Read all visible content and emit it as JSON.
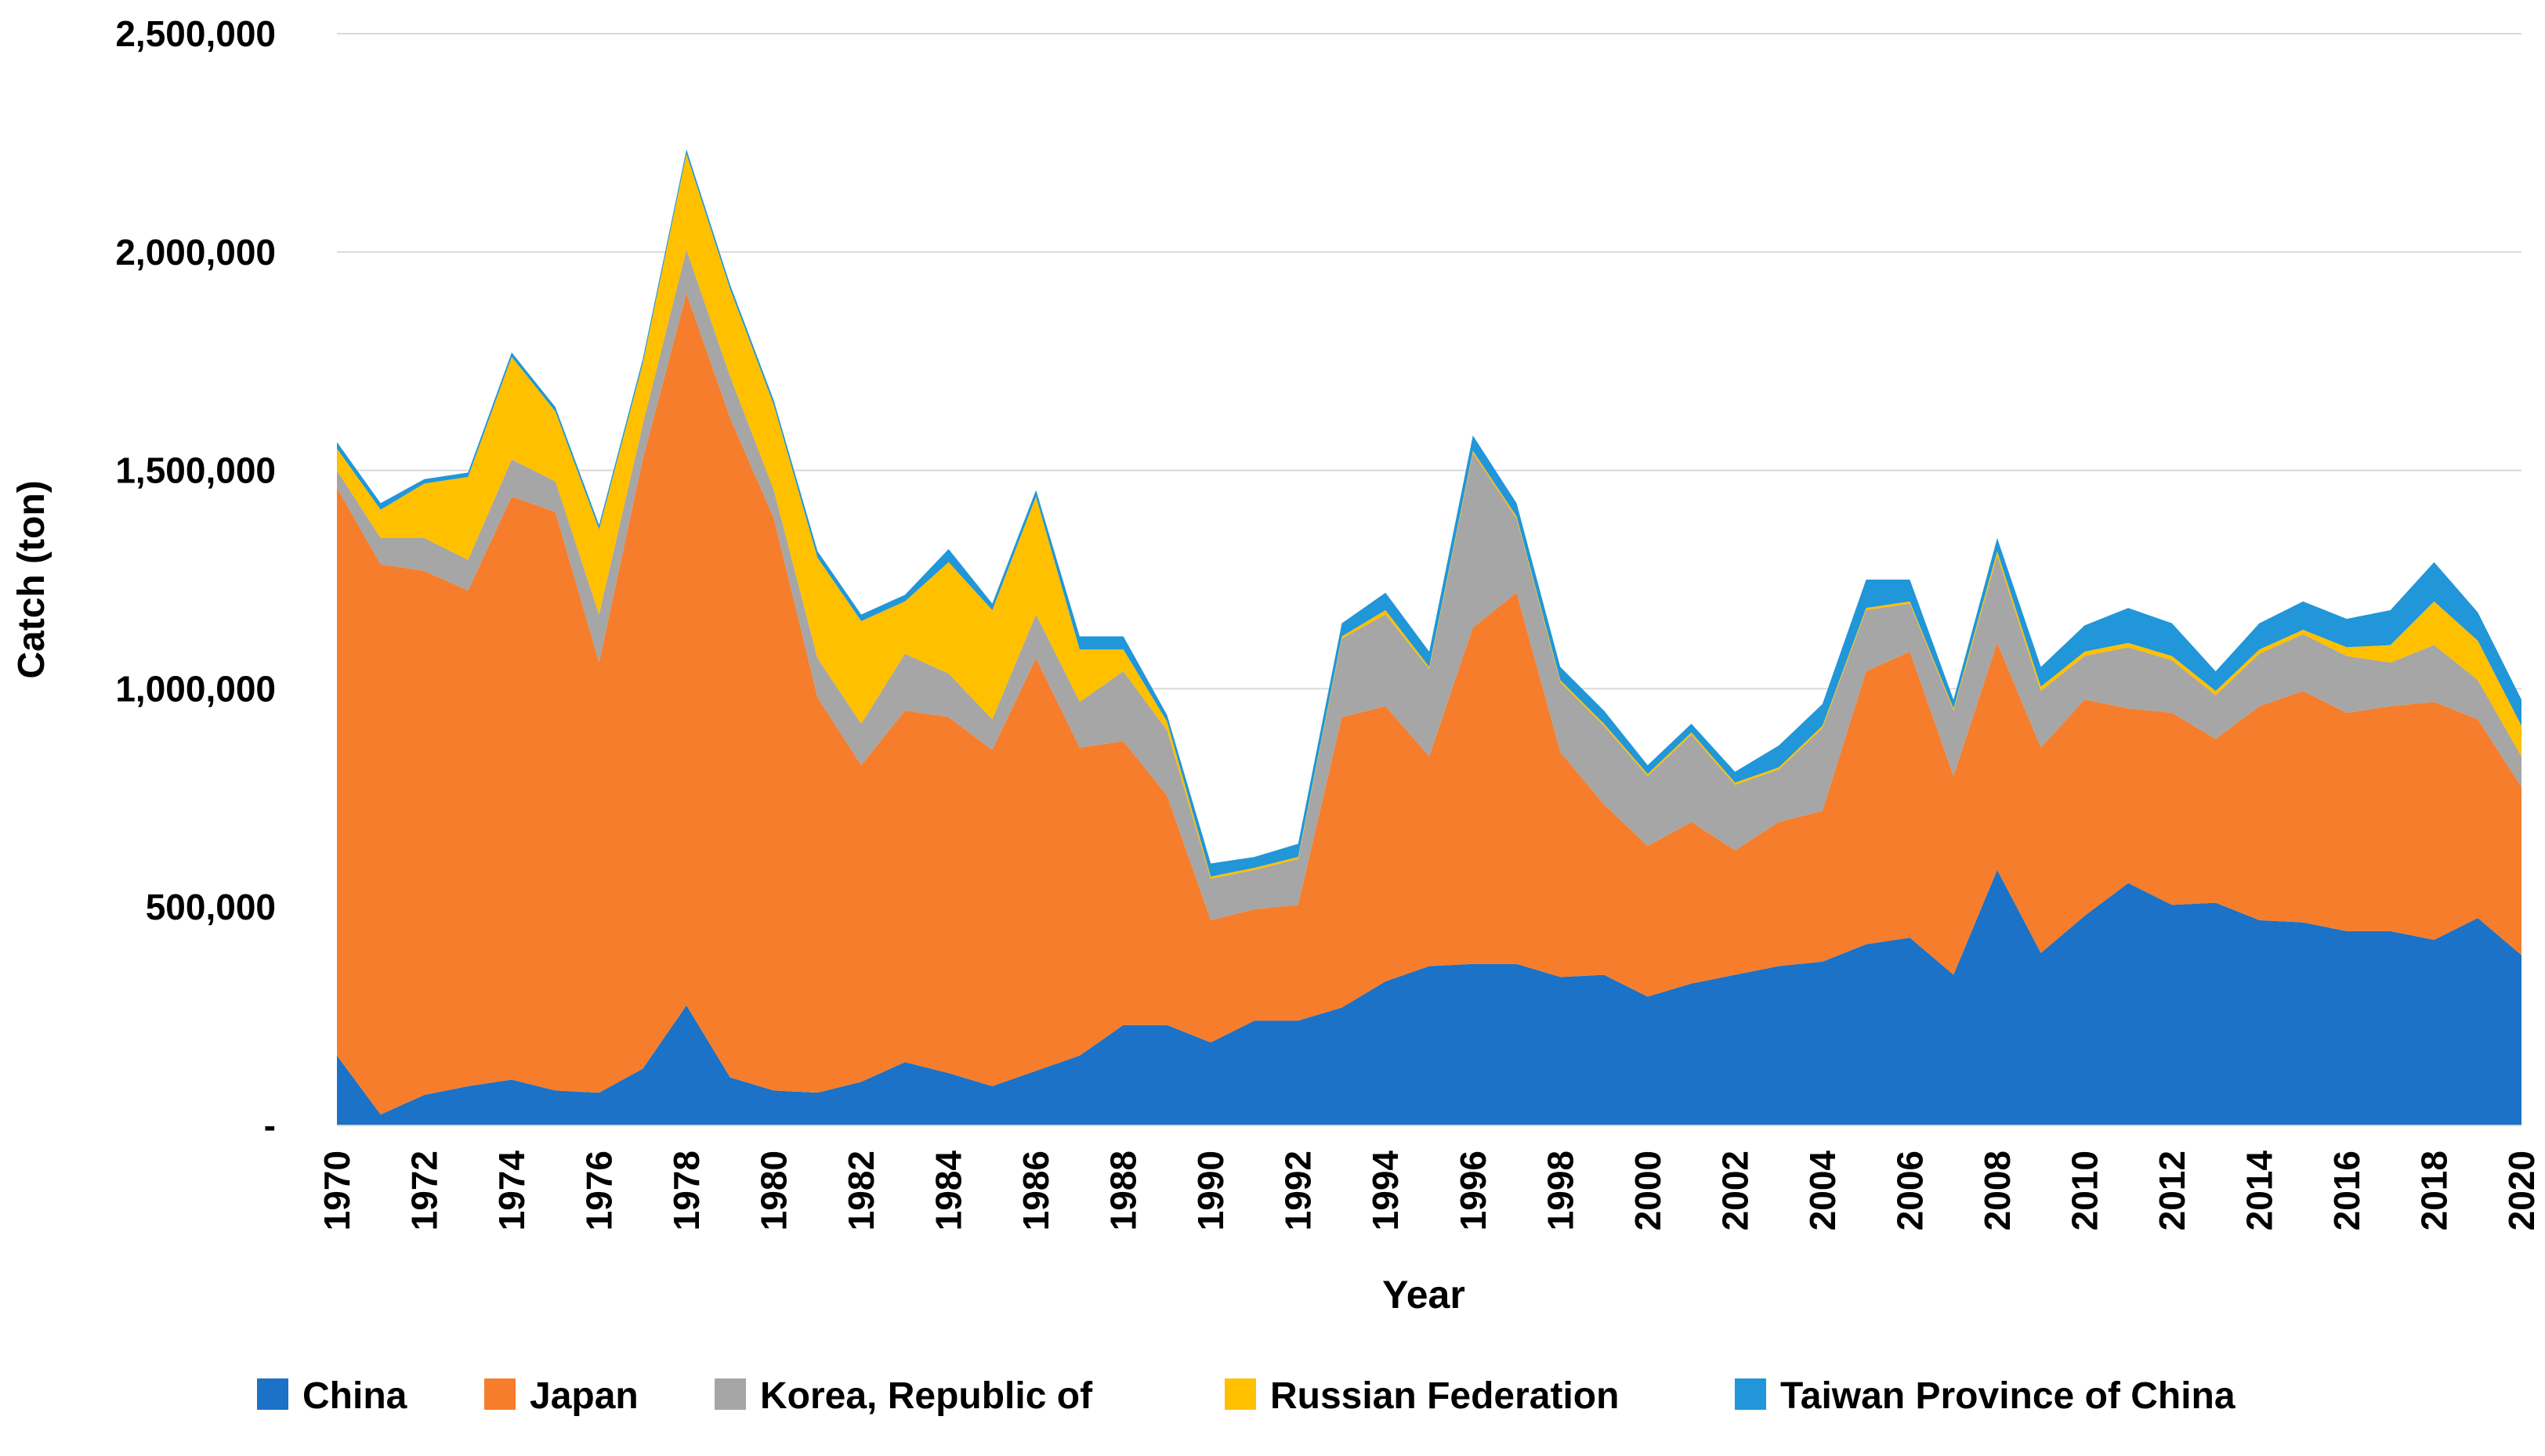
{
  "chart_data": {
    "type": "area",
    "stacked": true,
    "title": "",
    "xlabel": "Year",
    "ylabel": "Catch (ton)",
    "ylim": [
      0,
      2500000
    ],
    "yticks": [
      0,
      500000,
      1000000,
      1500000,
      2000000,
      2500000
    ],
    "ytick_labels": [
      "-",
      "500,000",
      "1,000,000",
      "1,500,000",
      "2,000,000",
      "2,500,000"
    ],
    "xticks": [
      1970,
      1972,
      1974,
      1976,
      1978,
      1980,
      1982,
      1984,
      1986,
      1988,
      1990,
      1992,
      1994,
      1996,
      1998,
      2000,
      2002,
      2004,
      2006,
      2008,
      2010,
      2012,
      2014,
      2016,
      2018,
      2020
    ],
    "xtick_labels": [
      "1970",
      "1972",
      "1974",
      "1976",
      "1978",
      "1980",
      "1982",
      "1984",
      "1986",
      "1988",
      "1990",
      "1992",
      "1994",
      "1996",
      "1998",
      "2000",
      "2002",
      "2004",
      "2006",
      "2008",
      "2010",
      "2012",
      "2014",
      "2016",
      "2018",
      "2020"
    ],
    "grid": "horizontal",
    "legend_position": "bottom",
    "x": [
      1970,
      1971,
      1972,
      1973,
      1974,
      1975,
      1976,
      1977,
      1978,
      1979,
      1980,
      1981,
      1982,
      1983,
      1984,
      1985,
      1986,
      1987,
      1988,
      1989,
      1990,
      1991,
      1992,
      1993,
      1994,
      1995,
      1996,
      1997,
      1998,
      1999,
      2000,
      2001,
      2002,
      2003,
      2004,
      2005,
      2006,
      2007,
      2008,
      2009,
      2010,
      2011,
      2012,
      2013,
      2014,
      2015,
      2016,
      2017,
      2018,
      2019,
      2020
    ],
    "series": [
      {
        "name": "China",
        "color": "#1b72c6",
        "values": [
          160000,
          25000,
          70000,
          90000,
          105000,
          80000,
          75000,
          130000,
          275000,
          110000,
          80000,
          75000,
          100000,
          145000,
          120000,
          90000,
          125000,
          160000,
          230000,
          230000,
          190000,
          240000,
          240000,
          270000,
          330000,
          365000,
          370000,
          370000,
          340000,
          345000,
          295000,
          325000,
          345000,
          365000,
          375000,
          415000,
          430000,
          345000,
          585000,
          395000,
          480000,
          555000,
          505000,
          510000,
          470000,
          465000,
          445000,
          445000,
          425000,
          475000,
          390000
        ]
      },
      {
        "name": "Japan",
        "color": "#f67d2b",
        "values": [
          1300000,
          1260000,
          1200000,
          1135000,
          1335000,
          1325000,
          985000,
          1395000,
          1630000,
          1510000,
          1310000,
          905000,
          725000,
          805000,
          815000,
          770000,
          945000,
          705000,
          650000,
          525000,
          280000,
          255000,
          265000,
          665000,
          630000,
          480000,
          770000,
          850000,
          515000,
          390000,
          345000,
          370000,
          285000,
          330000,
          345000,
          625000,
          655000,
          455000,
          520000,
          470000,
          495000,
          400000,
          440000,
          375000,
          490000,
          530000,
          500000,
          515000,
          545000,
          455000,
          385000
        ]
      },
      {
        "name": "Korea, Republic of",
        "color": "#a6a6a6",
        "values": [
          40000,
          60000,
          75000,
          70000,
          85000,
          70000,
          110000,
          80000,
          100000,
          95000,
          65000,
          90000,
          95000,
          130000,
          100000,
          70000,
          100000,
          105000,
          160000,
          150000,
          95000,
          90000,
          105000,
          180000,
          210000,
          200000,
          400000,
          170000,
          160000,
          180000,
          160000,
          200000,
          150000,
          120000,
          190000,
          140000,
          110000,
          150000,
          200000,
          130000,
          100000,
          140000,
          120000,
          100000,
          120000,
          130000,
          130000,
          100000,
          130000,
          90000,
          70000
        ]
      },
      {
        "name": "Russian Federation",
        "color": "#ffc000",
        "values": [
          50000,
          65000,
          125000,
          190000,
          235000,
          160000,
          195000,
          140000,
          220000,
          200000,
          195000,
          230000,
          235000,
          120000,
          255000,
          250000,
          270000,
          120000,
          50000,
          20000,
          5000,
          5000,
          5000,
          5000,
          10000,
          5000,
          5000,
          5000,
          5000,
          5000,
          5000,
          5000,
          5000,
          5000,
          5000,
          5000,
          5000,
          5000,
          10000,
          10000,
          10000,
          10000,
          10000,
          10000,
          10000,
          10000,
          20000,
          40000,
          100000,
          90000,
          70000
        ]
      },
      {
        "name": "Taiwan Province of China",
        "color": "#2196d8",
        "values": [
          15000,
          15000,
          10000,
          10000,
          10000,
          10000,
          10000,
          10000,
          10000,
          10000,
          10000,
          15000,
          15000,
          15000,
          30000,
          15000,
          15000,
          30000,
          30000,
          15000,
          30000,
          25000,
          30000,
          30000,
          40000,
          35000,
          35000,
          30000,
          30000,
          30000,
          20000,
          20000,
          25000,
          50000,
          50000,
          65000,
          50000,
          20000,
          30000,
          45000,
          60000,
          80000,
          75000,
          45000,
          60000,
          65000,
          65000,
          80000,
          90000,
          65000,
          60000
        ]
      }
    ]
  }
}
